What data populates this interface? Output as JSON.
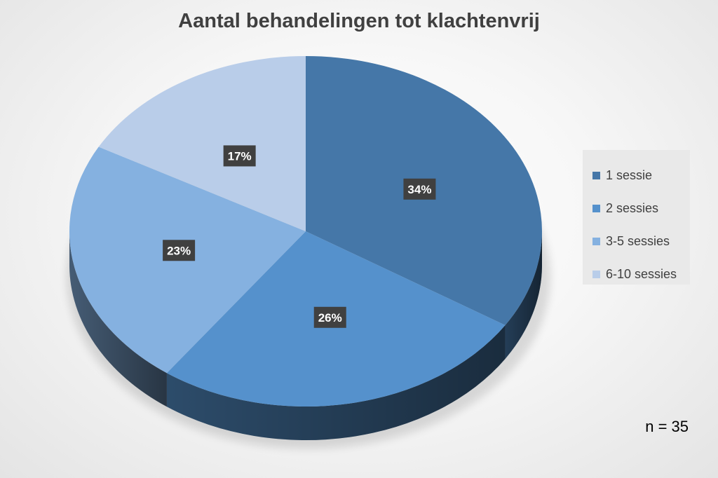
{
  "chart_data": {
    "type": "pie",
    "title": "Aantal behandelingen tot klachtenvrij",
    "categories": [
      "1 sessie",
      "2 sessies",
      "3-5 sessies",
      "6-10 sessies"
    ],
    "values": [
      34,
      26,
      23,
      17
    ],
    "data_labels": [
      "34%",
      "26%",
      "23%",
      "17%"
    ],
    "colors": [
      "#4577a8",
      "#5591cc",
      "#85b1e0",
      "#b9cde9"
    ],
    "legend_position": "right",
    "style": "3d"
  },
  "annotation": {
    "sample_size": "n = 35"
  }
}
